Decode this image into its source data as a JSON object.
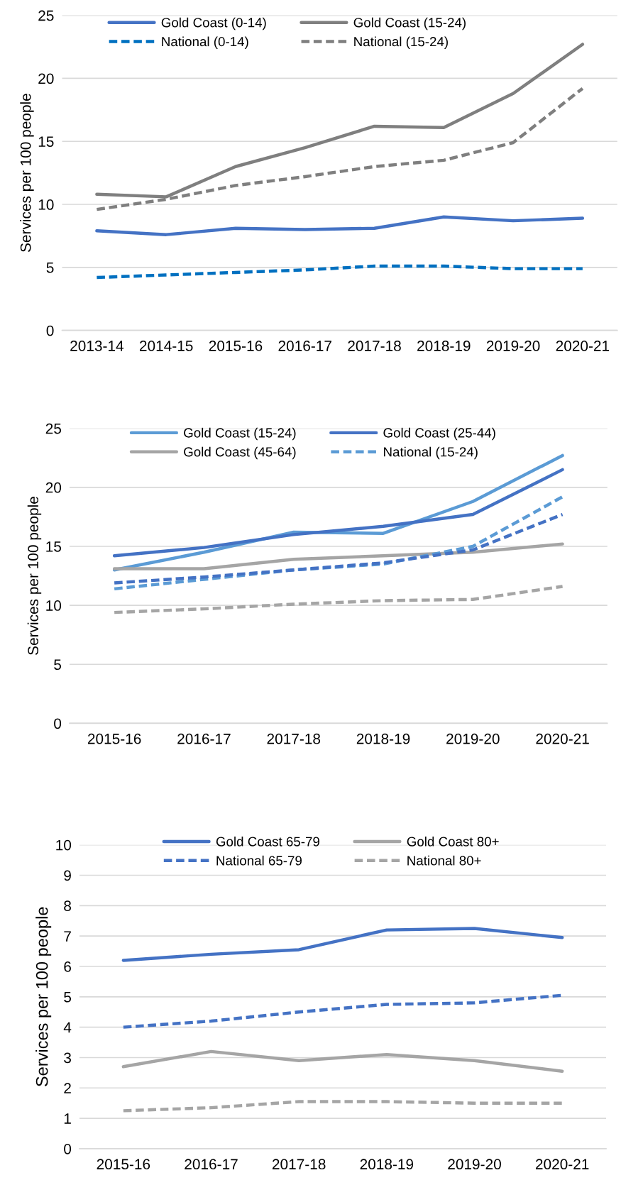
{
  "chart_data": [
    {
      "type": "line",
      "ylabel": "Services per 100 people",
      "categories": [
        "2013-14",
        "2014-15",
        "2015-16",
        "2016-17",
        "2017-18",
        "2018-19",
        "2019-20",
        "2020-21"
      ],
      "ylim": [
        0,
        25
      ],
      "yticks": [
        0,
        5,
        10,
        15,
        20,
        25
      ],
      "grid": "y",
      "legend": "top",
      "series": [
        {
          "name": "Gold Coast (0-14)",
          "color": "#4472c4",
          "line_style": "solid",
          "values": [
            7.9,
            7.6,
            8.1,
            8.0,
            8.1,
            9.0,
            8.7,
            8.9
          ]
        },
        {
          "name": "Gold Coast (15-24)",
          "color": "#7f7f7f",
          "line_style": "solid",
          "values": [
            10.8,
            10.6,
            13.0,
            14.5,
            16.2,
            16.1,
            18.8,
            22.7
          ]
        },
        {
          "name": "National (0-14)",
          "color": "#0070c0",
          "line_style": "dashed",
          "values": [
            4.2,
            4.4,
            4.6,
            4.8,
            5.1,
            5.1,
            4.9,
            4.9
          ]
        },
        {
          "name": "National (15-24)",
          "color": "#7f7f7f",
          "line_style": "dashed",
          "values": [
            9.6,
            10.4,
            11.5,
            12.2,
            13.0,
            13.5,
            14.9,
            19.2
          ]
        }
      ]
    },
    {
      "type": "line",
      "ylabel": "Services per 100 people",
      "categories": [
        "2015-16",
        "2016-17",
        "2017-18",
        "2018-19",
        "2019-20",
        "2020-21"
      ],
      "ylim": [
        0,
        25
      ],
      "yticks": [
        0,
        5,
        10,
        15,
        20,
        25
      ],
      "grid": "y",
      "legend": "top",
      "series": [
        {
          "name": "Gold Coast (15-24)",
          "color": "#5b9bd5",
          "line_style": "solid",
          "values": [
            13.0,
            14.5,
            16.2,
            16.1,
            18.8,
            22.7
          ]
        },
        {
          "name": "Gold Coast (25-44)",
          "color": "#4472c4",
          "line_style": "solid",
          "values": [
            14.2,
            14.9,
            16.0,
            16.7,
            17.7,
            21.5
          ]
        },
        {
          "name": "Gold Coast (45-64)",
          "color": "#a5a5a5",
          "line_style": "solid",
          "values": [
            13.1,
            13.1,
            13.9,
            14.2,
            14.5,
            15.2
          ]
        },
        {
          "name": "National (15-24)",
          "color": "#5b9bd5",
          "line_style": "dashed",
          "values": [
            11.4,
            12.2,
            13.0,
            13.5,
            15.0,
            19.2
          ]
        },
        {
          "color": "#4472c4",
          "line_style": "dashed",
          "values": [
            11.9,
            12.4,
            13.0,
            13.6,
            14.7,
            17.7
          ]
        },
        {
          "color": "#a5a5a5",
          "line_style": "dashed",
          "values": [
            9.4,
            9.7,
            10.1,
            10.4,
            10.5,
            11.6
          ]
        }
      ]
    },
    {
      "type": "line",
      "ylabel": "Services per 100 people",
      "categories": [
        "2015-16",
        "2016-17",
        "2017-18",
        "2018-19",
        "2019-20",
        "2020-21"
      ],
      "ylim": [
        0,
        10
      ],
      "yticks": [
        0,
        1,
        2,
        3,
        4,
        5,
        6,
        7,
        8,
        9,
        10
      ],
      "grid": "y",
      "legend": "top",
      "series": [
        {
          "name": "Gold Coast 65-79",
          "color": "#4472c4",
          "line_style": "solid",
          "values": [
            6.2,
            6.4,
            6.55,
            7.2,
            7.25,
            6.95
          ]
        },
        {
          "name": "Gold Coast 80+",
          "color": "#a5a5a5",
          "line_style": "solid",
          "values": [
            2.7,
            3.2,
            2.9,
            3.1,
            2.9,
            2.55
          ]
        },
        {
          "name": "National 65-79",
          "color": "#4472c4",
          "line_style": "dashed",
          "values": [
            4.0,
            4.2,
            4.5,
            4.75,
            4.8,
            5.05
          ]
        },
        {
          "name": "National 80+",
          "color": "#a5a5a5",
          "line_style": "dashed",
          "values": [
            1.25,
            1.35,
            1.55,
            1.55,
            1.5,
            1.5
          ]
        }
      ]
    }
  ]
}
